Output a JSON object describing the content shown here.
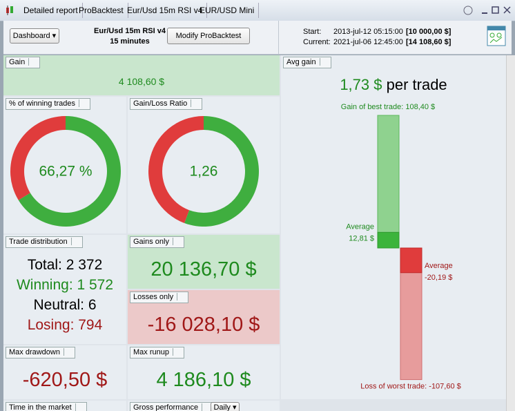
{
  "tabs": [
    "Detailed report",
    "ProBacktest",
    "Eur/Usd 15m RSI v4",
    "EUR/USD Mini"
  ],
  "toolbar": {
    "dashboard": "Dashboard",
    "system_name": "Eur/Usd 15m RSI v4",
    "timeframe": "15 minutes",
    "modify_button": "Modify ProBacktest",
    "start_label": "Start:",
    "start_date": "2013-jul-12 05:15:00",
    "start_capital": "[10 000,00 $]",
    "current_label": "Current:",
    "current_date": "2021-jul-06 12:45:00",
    "current_capital": "[14 108,60 $]"
  },
  "panels": {
    "gain": {
      "title": "Gain",
      "value": "4 108,60 $"
    },
    "winning_trades": {
      "title": "% of winning trades",
      "value": {
        "value": 66.27,
        "label": "66,27 %"
      }
    },
    "gain_loss_ratio": {
      "title": "Gain/Loss Ratio",
      "value": {
        "value": 1.26,
        "label": "1,26"
      }
    },
    "trade_distribution": {
      "title": "Trade distribution",
      "total": "Total: 2 372",
      "winning": "Winning: 1 572",
      "neutral": "Neutral: 6",
      "losing": "Losing: 794"
    },
    "gains_only": {
      "title": "Gains only",
      "value": {
        "value": 20136.7,
        "label": "20 136,70 $"
      }
    },
    "losses_only": {
      "title": "Losses only",
      "value": {
        "value": -16028.1,
        "label": "-16 028,10 $"
      }
    },
    "max_drawdown": {
      "title": "Max drawdown",
      "value": "-620,50 $"
    },
    "max_runup": {
      "title": "Max runup",
      "value": "4 186,10 $"
    },
    "time_in_market": {
      "title": "Time in the market"
    },
    "gross_performance": {
      "title": "Gross performance",
      "period": "Daily"
    },
    "avg_gain": {
      "title": "Avg gain",
      "value": "1,73 $",
      "unit": "per trade",
      "best_trade_label": "Gain of best trade:",
      "best_trade": {
        "value": 108.4,
        "label": "108,40 $"
      },
      "average_gain_label": "Average",
      "average_gain": {
        "value": 12.81,
        "label": "12,81 $"
      },
      "average_loss_label": "Average",
      "average_loss": {
        "value": -20.19,
        "label": "-20,19 $"
      },
      "worst_trade_label": "Loss of worst trade:",
      "worst_trade": {
        "value": -107.6,
        "label": "-107,60 $"
      }
    }
  }
}
